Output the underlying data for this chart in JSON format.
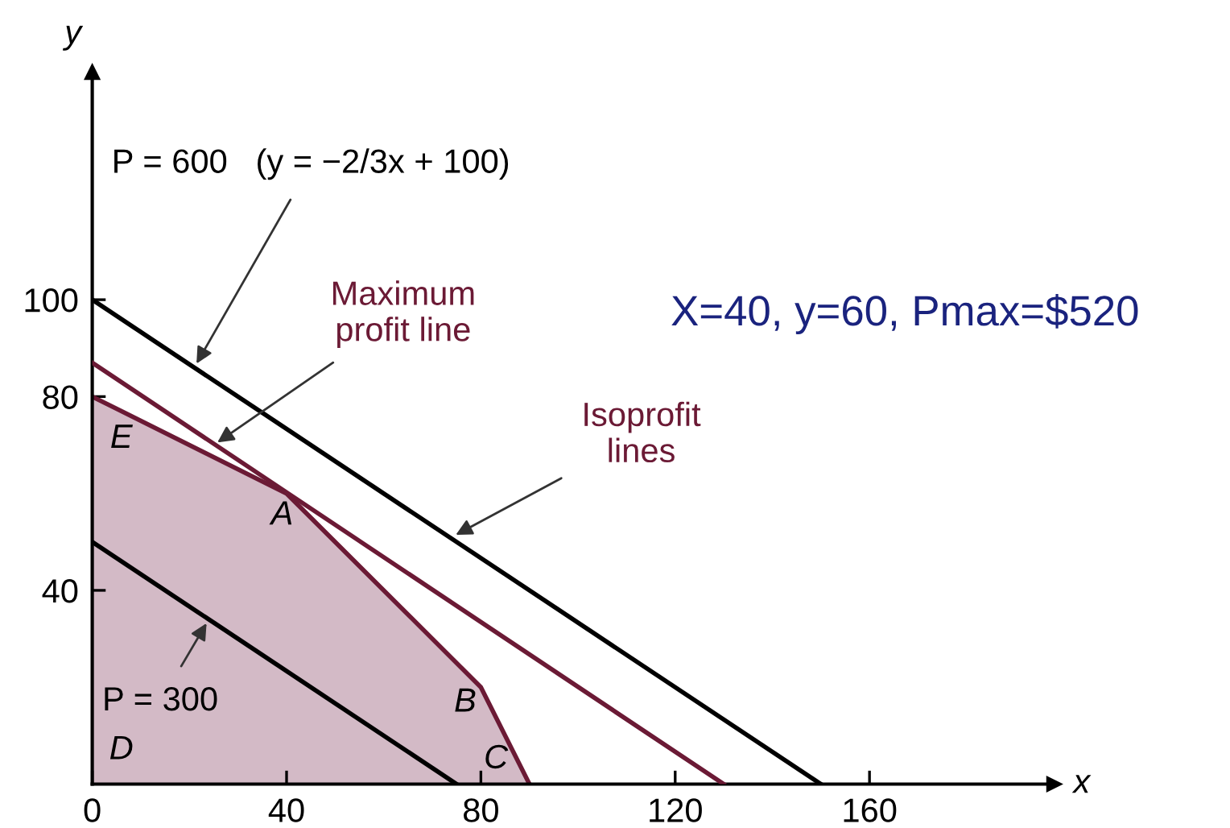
{
  "chart_data": {
    "type": "line",
    "xlabel": "x",
    "ylabel": "y",
    "xlim": [
      0,
      198
    ],
    "ylim": [
      0,
      147
    ],
    "xticks": [
      0,
      40,
      80,
      120,
      160
    ],
    "yticks": [
      40,
      80,
      100
    ],
    "grid": false,
    "legend": false,
    "marker": "none",
    "line_style": "solid",
    "series": [
      {
        "type": "area",
        "color": "#6b1a35",
        "x": [
          0,
          40,
          80,
          90
        ],
        "values": [
          80,
          60,
          20,
          0
        ]
      },
      {
        "color": "#000000",
        "x": [
          0,
          150
        ],
        "values": [
          100,
          0
        ]
      },
      {
        "color": "#6b1a35",
        "x": [
          0,
          130
        ],
        "values": [
          87,
          0
        ]
      },
      {
        "color": "#000000",
        "x": [
          0,
          75
        ],
        "values": [
          50,
          0
        ]
      }
    ],
    "annotations": [
      {
        "text": "P = 600   (y = −2/3x + 100)",
        "x": 21,
        "y": 86
      },
      {
        "text": "Maximum\nprofit line",
        "x": 25,
        "y": 70
      },
      {
        "text": "Isoprofit\nlines",
        "x": 74,
        "y": 51
      },
      {
        "text": "P = 300",
        "x": 24,
        "y": 34
      },
      {
        "text": "E",
        "x": 0,
        "y": 80
      },
      {
        "text": "A",
        "x": 40,
        "y": 60
      },
      {
        "text": "B",
        "x": 80,
        "y": 20
      },
      {
        "text": "C",
        "x": 90,
        "y": 0
      },
      {
        "text": "D",
        "x": 0,
        "y": 0
      },
      "X=40, y=60, Pmax=$520"
    ]
  }
}
